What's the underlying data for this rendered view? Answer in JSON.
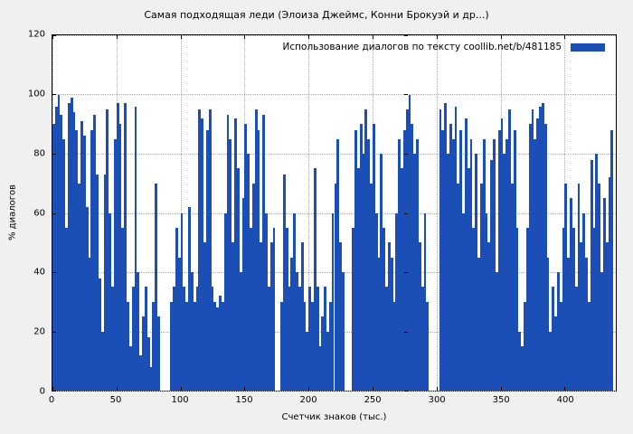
{
  "figure": {
    "background": "#f0f0f0"
  },
  "title": "Самая подходящая леди (Элоиза Джеймс, Конни Брокуэй и др...)",
  "legend": {
    "label": "Использование диалогов по тексту  coollib.net/b/481185",
    "swatch_color": "#1c4fb5"
  },
  "axes": {
    "ylabel": "% диалогов",
    "xlabel": "Счетчик знаков (тыс.)",
    "y_ticks": [
      0,
      20,
      40,
      60,
      80,
      100,
      120
    ],
    "x_ticks": [
      0,
      50,
      100,
      150,
      200,
      250,
      300,
      350,
      400
    ]
  },
  "chart_data": {
    "type": "bar",
    "title": "Самая подходящая леди (Элоиза Джеймс, Конни Брокуэй и др...)",
    "xlabel": "Счетчик знаков (тыс.)",
    "ylabel": "% диалогов",
    "xlim": [
      0,
      440
    ],
    "ylim": [
      0,
      120
    ],
    "x_start": 0,
    "x_step": 2,
    "bar_color": "#1c4fb5",
    "grid": true,
    "legend_position": "top-right",
    "legend_label": "Использование диалогов по тексту  coollib.net/b/481185",
    "values": [
      90,
      96,
      100,
      93,
      85,
      55,
      97,
      99,
      94,
      88,
      70,
      91,
      86,
      62,
      45,
      88,
      93,
      73,
      38,
      20,
      73,
      95,
      60,
      35,
      85,
      97,
      90,
      55,
      97,
      30,
      15,
      35,
      96,
      40,
      12,
      25,
      35,
      18,
      8,
      30,
      70,
      25,
      0,
      0,
      0,
      0,
      30,
      35,
      55,
      45,
      60,
      35,
      30,
      62,
      40,
      30,
      35,
      95,
      92,
      50,
      88,
      95,
      35,
      30,
      28,
      32,
      30,
      60,
      93,
      85,
      50,
      92,
      75,
      40,
      65,
      90,
      80,
      55,
      70,
      95,
      88,
      50,
      93,
      60,
      35,
      50,
      55,
      0,
      0,
      30,
      73,
      55,
      35,
      45,
      60,
      40,
      35,
      50,
      30,
      20,
      35,
      30,
      75,
      35,
      15,
      25,
      35,
      20,
      30,
      60,
      70,
      85,
      50,
      40,
      0,
      0,
      0,
      55,
      88,
      75,
      90,
      80,
      95,
      85,
      70,
      90,
      60,
      45,
      80,
      55,
      35,
      50,
      45,
      30,
      60,
      85,
      75,
      88,
      95,
      100,
      90,
      80,
      85,
      50,
      35,
      60,
      30,
      0,
      0,
      0,
      0,
      95,
      88,
      97,
      80,
      90,
      85,
      96,
      70,
      88,
      60,
      92,
      75,
      85,
      55,
      80,
      45,
      70,
      85,
      60,
      50,
      78,
      85,
      40,
      88,
      92,
      80,
      85,
      95,
      70,
      88,
      55,
      20,
      15,
      30,
      55,
      90,
      95,
      85,
      92,
      96,
      97,
      90,
      45,
      20,
      35,
      25,
      40,
      30,
      55,
      70,
      45,
      65,
      55,
      35,
      70,
      50,
      60,
      45,
      30,
      78,
      55,
      80,
      70,
      40,
      65,
      50,
      72,
      88
    ]
  }
}
